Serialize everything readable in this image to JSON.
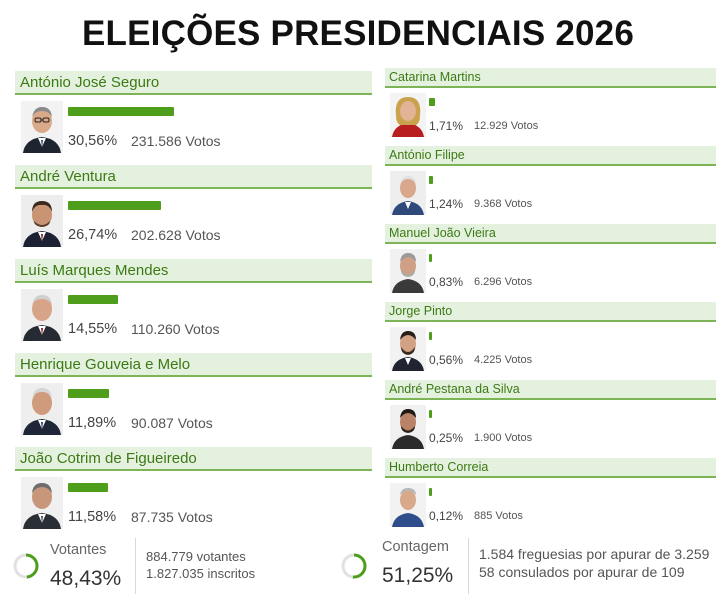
{
  "title": "ELEIÇÕES PRESIDENCIAIS 2026",
  "colors": {
    "accent_green": "#4e9e1c",
    "name_text": "#3b7a14",
    "name_bg": "#e5f1df"
  },
  "left_candidates": [
    {
      "name": "António José Seguro",
      "percent": "30,56%",
      "votes": "231.586 Votos",
      "share": 30.56
    },
    {
      "name": "André Ventura",
      "percent": "26,74%",
      "votes": "202.628 Votos",
      "share": 26.74
    },
    {
      "name": "Luís Marques Mendes",
      "percent": "14,55%",
      "votes": "110.260 Votos",
      "share": 14.55
    },
    {
      "name": "Henrique Gouveia e Melo",
      "percent": "11,89%",
      "votes": "90.087 Votos",
      "share": 11.89
    },
    {
      "name": "João Cotrim de Figueiredo",
      "percent": "11,58%",
      "votes": "87.735 Votos",
      "share": 11.58
    }
  ],
  "right_candidates": [
    {
      "name": "Catarina Martins",
      "percent": "1,71%",
      "votes": "12.929 Votos",
      "share": 1.71
    },
    {
      "name": "António Filipe",
      "percent": "1,24%",
      "votes": "9.368 Votos",
      "share": 1.24
    },
    {
      "name": "Manuel João Vieira",
      "percent": "0,83%",
      "votes": "6.296 Votos",
      "share": 0.83
    },
    {
      "name": "Jorge Pinto",
      "percent": "0,56%",
      "votes": "4.225 Votos",
      "share": 0.56
    },
    {
      "name": "André Pestana da Silva",
      "percent": "0,25%",
      "votes": "1.900 Votos",
      "share": 0.25
    },
    {
      "name": "Humberto Correia",
      "percent": "0,12%",
      "votes": "885 Votos",
      "share": 0.12
    }
  ],
  "turnout": {
    "label": "Votantes",
    "percent": "48,43%",
    "share": 48.43,
    "voters": "884.779 votantes",
    "registered": "1.827.035 inscritos"
  },
  "count": {
    "label": "Contagem",
    "percent": "51,25%",
    "share": 51.25,
    "parishes": "1.584 freguesias por apurar de 3.259",
    "consulates": "58 consulados por apurar de 109"
  }
}
